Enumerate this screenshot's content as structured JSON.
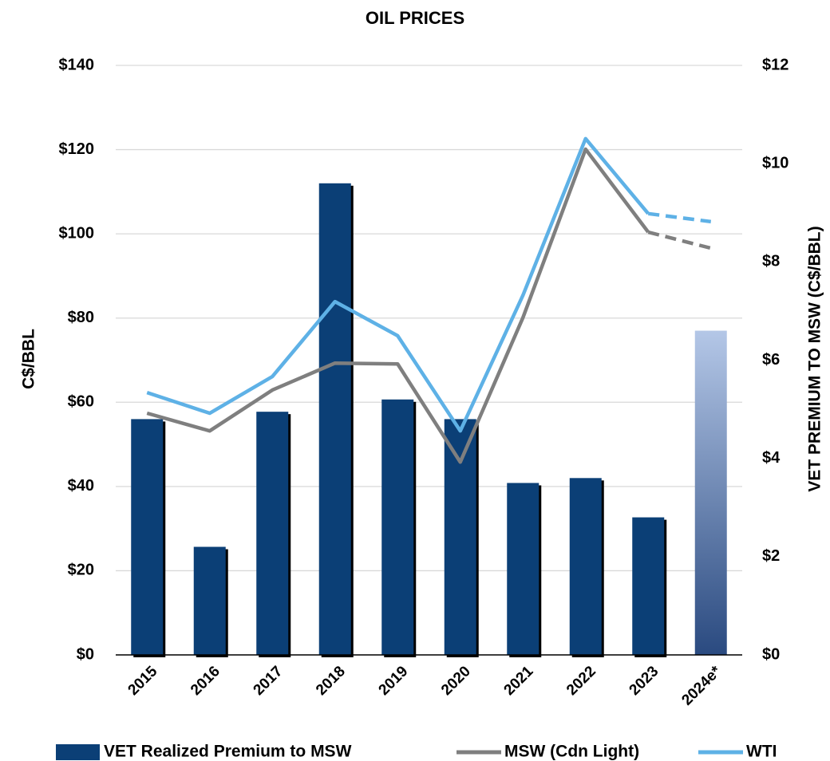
{
  "chart_data": {
    "type": "bar_line",
    "title": "OIL PRICES",
    "y_label": "C$/BBL",
    "y2_label": "VET PREMIUM TO MSW (C$/BBL)",
    "categories": [
      "2015",
      "2016",
      "2017",
      "2018",
      "2019",
      "2020",
      "2021",
      "2022",
      "2023",
      "2024e*"
    ],
    "series": [
      {
        "name": "VET Realized Premium to MSW",
        "type": "bar",
        "axis": "y2",
        "color": "#0b3f76",
        "gradient_index": 9,
        "gradient_colors": [
          "#b4c7e7",
          "#2a4a80"
        ],
        "values": [
          4.8,
          2.2,
          4.95,
          9.6,
          5.2,
          4.8,
          3.5,
          3.6,
          2.8,
          6.6
        ]
      },
      {
        "name": "MSW (Cdn Light)",
        "type": "line",
        "color": "#7f7f7f",
        "dashed_from": 8,
        "values": [
          57.4,
          53.2,
          62.9,
          69.3,
          69.1,
          45.8,
          80.1,
          120.1,
          100.4,
          96.6
        ]
      },
      {
        "name": "WTI",
        "type": "line",
        "color": "#5eb1e6",
        "dashed_from": 8,
        "values": [
          62.3,
          57.4,
          66.1,
          83.9,
          75.8,
          53.2,
          85.4,
          122.6,
          104.8,
          102.9
        ]
      }
    ],
    "ylim": [
      0,
      140
    ],
    "yticks": [
      {
        "value": 0,
        "label": "$0"
      },
      {
        "value": 20,
        "label": "$20"
      },
      {
        "value": 40,
        "label": "$40"
      },
      {
        "value": 60,
        "label": "$60"
      },
      {
        "value": 80,
        "label": "$80"
      },
      {
        "value": 100,
        "label": "$100"
      },
      {
        "value": 120,
        "label": "$120"
      },
      {
        "value": 140,
        "label": "$140"
      }
    ],
    "y2lim": [
      0,
      12
    ],
    "y2ticks": [
      {
        "value": 0,
        "label": "$0"
      },
      {
        "value": 2,
        "label": "$2"
      },
      {
        "value": 4,
        "label": "$4"
      },
      {
        "value": 6,
        "label": "$6"
      },
      {
        "value": 8,
        "label": "$8"
      },
      {
        "value": 10,
        "label": "$10"
      },
      {
        "value": 12,
        "label": "$12"
      }
    ],
    "grid": true
  }
}
